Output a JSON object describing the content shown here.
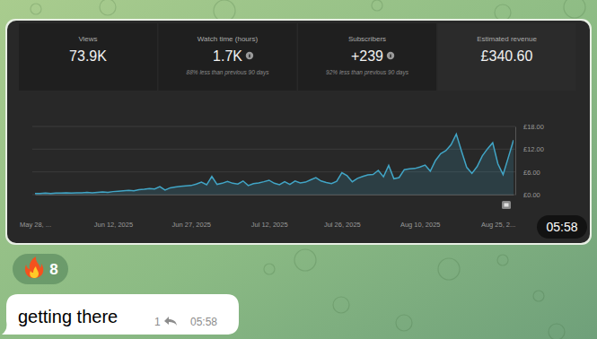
{
  "stats": [
    {
      "label": "Views",
      "value": "73.9K"
    },
    {
      "label": "Watch time (hours)",
      "value": "1.7K",
      "note": "88% less than previous 90 days"
    },
    {
      "label": "Subscribers",
      "value": "+239",
      "note": "92% less than previous 90 days"
    },
    {
      "label": "Estimated revenue",
      "value": "£340.60"
    }
  ],
  "chart_data": {
    "type": "line",
    "color": "#41a5c6",
    "grid": true,
    "categories": [
      "May 28, ...",
      null,
      null,
      null,
      null,
      null,
      null,
      null,
      null,
      null,
      null,
      null,
      null,
      null,
      null,
      "Jun 12, 2025",
      null,
      null,
      null,
      null,
      null,
      null,
      null,
      null,
      null,
      null,
      null,
      null,
      null,
      null,
      "Jun 27, 2025",
      null,
      null,
      null,
      null,
      null,
      null,
      null,
      null,
      null,
      null,
      null,
      null,
      null,
      null,
      "Jul 12, 2025",
      null,
      null,
      null,
      null,
      null,
      null,
      null,
      null,
      null,
      null,
      null,
      null,
      null,
      "Jul 26, 2025",
      null,
      null,
      null,
      null,
      null,
      null,
      null,
      null,
      null,
      null,
      null,
      null,
      null,
      null,
      "Aug 10, 2025",
      null,
      null,
      null,
      null,
      null,
      null,
      null,
      null,
      null,
      null,
      null,
      null,
      null,
      null,
      "Aug 25, 2...",
      null,
      null,
      null
    ],
    "values": [
      0.3,
      0.3,
      0.4,
      0.3,
      0.4,
      0.4,
      0.5,
      0.4,
      0.5,
      0.5,
      0.6,
      0.5,
      0.6,
      0.7,
      0.6,
      0.8,
      0.9,
      1.0,
      1.1,
      1.0,
      1.3,
      1.4,
      1.6,
      1.5,
      2.1,
      1.2,
      1.8,
      2.0,
      2.2,
      2.3,
      2.4,
      2.8,
      3.3,
      2.6,
      4.8,
      2.7,
      3.0,
      3.5,
      3.0,
      2.8,
      3.6,
      2.4,
      2.9,
      3.1,
      3.4,
      3.8,
      3.0,
      2.6,
      3.4,
      2.7,
      3.6,
      3.1,
      3.3,
      3.9,
      4.5,
      3.6,
      3.2,
      2.9,
      3.5,
      5.8,
      5.0,
      3.4,
      4.3,
      4.8,
      5.2,
      5.3,
      6.4,
      4.7,
      7.7,
      4.2,
      4.5,
      6.6,
      6.8,
      6.9,
      7.3,
      7.8,
      6.2,
      9.0,
      10.8,
      11.6,
      13.2,
      16.0,
      11.5,
      7.2,
      5.6,
      7.4,
      10.2,
      12.1,
      13.7,
      8.1,
      5.3,
      9.8,
      14.4
    ],
    "ylim": [
      0,
      18
    ],
    "yticks": [
      {
        "value": 0,
        "label": "£0.00"
      },
      {
        "value": 6,
        "label": "£6.00"
      },
      {
        "value": 12,
        "label": "£12.00"
      },
      {
        "value": 18,
        "label": "£18.00"
      }
    ]
  },
  "image_time": "05:58",
  "reaction": {
    "count": 8
  },
  "message": {
    "text": "getting there",
    "replies": 1,
    "time": "05:58"
  }
}
